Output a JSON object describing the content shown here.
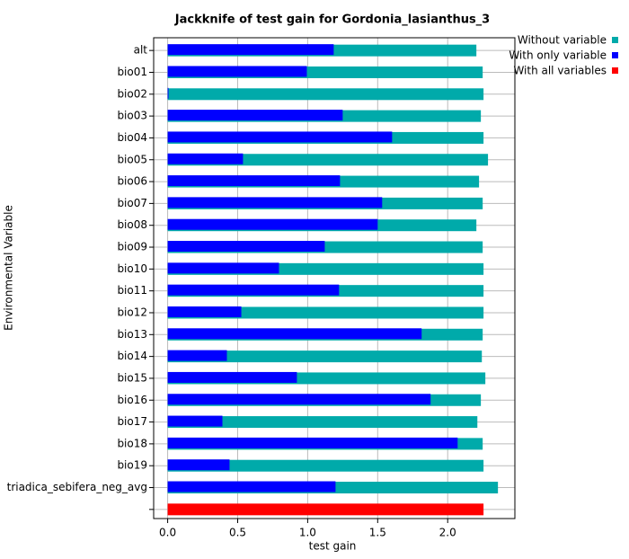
{
  "chart_data": {
    "type": "bar",
    "orientation": "horizontal",
    "title": "Jackknife of test gain for Gordonia_lasianthus_3",
    "x_label": "test gain",
    "y_label": "Environmental Variable",
    "categories": [
      "alt",
      "bio01",
      "bio02",
      "bio03",
      "bio04",
      "bio05",
      "bio06",
      "bio07",
      "bio08",
      "bio09",
      "bio10",
      "bio11",
      "bio12",
      "bio13",
      "bio14",
      "bio15",
      "bio16",
      "bio17",
      "bio18",
      "bio19",
      "triadica_sebifera_neg_avg",
      null
    ],
    "series": [
      {
        "name": "Without variable",
        "color": "#00aaaa",
        "values": [
          2.205,
          2.25,
          2.256,
          2.237,
          2.256,
          2.288,
          2.224,
          2.25,
          2.205,
          2.25,
          2.256,
          2.256,
          2.256,
          2.25,
          2.244,
          2.269,
          2.237,
          2.212,
          2.25,
          2.256,
          2.359,
          null
        ]
      },
      {
        "name": "With only variable",
        "color": "#0000ff",
        "values": [
          1.186,
          0.994,
          0.006,
          1.25,
          1.603,
          0.538,
          1.231,
          1.532,
          1.5,
          1.122,
          0.795,
          1.224,
          0.526,
          1.814,
          0.423,
          0.923,
          1.878,
          0.391,
          2.071,
          0.442,
          1.199,
          null
        ]
      },
      {
        "name": "With all variables",
        "color": "#ff0000",
        "values": [
          null,
          null,
          null,
          null,
          null,
          null,
          null,
          null,
          null,
          null,
          null,
          null,
          null,
          null,
          null,
          null,
          null,
          null,
          null,
          null,
          null,
          2.256
        ]
      }
    ],
    "xlim": [
      -0.1,
      2.48
    ],
    "xticks": [
      {
        "value": 0,
        "label": "0.0"
      },
      0.5,
      {
        "value": 1,
        "label": "1.0"
      },
      1.5,
      {
        "value": 2,
        "label": "2.0"
      }
    ],
    "grid": true,
    "legend": "top-right"
  }
}
